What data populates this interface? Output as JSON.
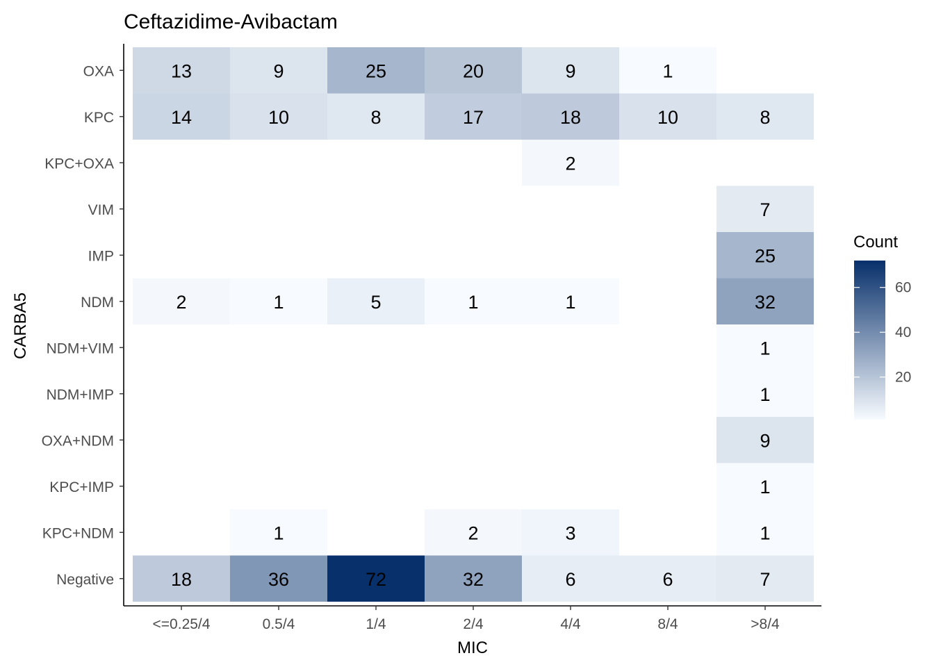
{
  "chart_data": {
    "type": "heatmap",
    "title": "Ceftazidime-Avibactam",
    "xlabel": "MIC",
    "ylabel": "CARBA5",
    "x_categories": [
      "<=0.25/4",
      "0.5/4",
      "1/4",
      "2/4",
      "4/4",
      "8/4",
      ">8/4"
    ],
    "y_categories": [
      "OXA",
      "KPC",
      "KPC+OXA",
      "VIM",
      "IMP",
      "NDM",
      "NDM+VIM",
      "NDM+IMP",
      "OXA+NDM",
      "KPC+IMP",
      "KPC+NDM",
      "Negative"
    ],
    "values": [
      [
        13,
        9,
        25,
        20,
        9,
        1,
        null
      ],
      [
        14,
        10,
        8,
        17,
        18,
        10,
        8
      ],
      [
        null,
        null,
        null,
        null,
        2,
        null,
        null
      ],
      [
        null,
        null,
        null,
        null,
        null,
        null,
        7
      ],
      [
        null,
        null,
        null,
        null,
        null,
        null,
        25
      ],
      [
        2,
        1,
        5,
        1,
        1,
        null,
        32
      ],
      [
        null,
        null,
        null,
        null,
        null,
        null,
        1
      ],
      [
        null,
        null,
        null,
        null,
        null,
        null,
        1
      ],
      [
        null,
        null,
        null,
        null,
        null,
        null,
        9
      ],
      [
        null,
        null,
        null,
        null,
        null,
        null,
        1
      ],
      [
        null,
        1,
        null,
        2,
        3,
        null,
        1
      ],
      [
        18,
        36,
        72,
        32,
        6,
        6,
        7
      ]
    ],
    "legend": {
      "title": "Count",
      "ticks": [
        20,
        40,
        60
      ],
      "range": [
        1,
        72
      ],
      "position": "right"
    },
    "color_low": "#f7fbff",
    "color_high": "#08306b",
    "grid": false
  }
}
